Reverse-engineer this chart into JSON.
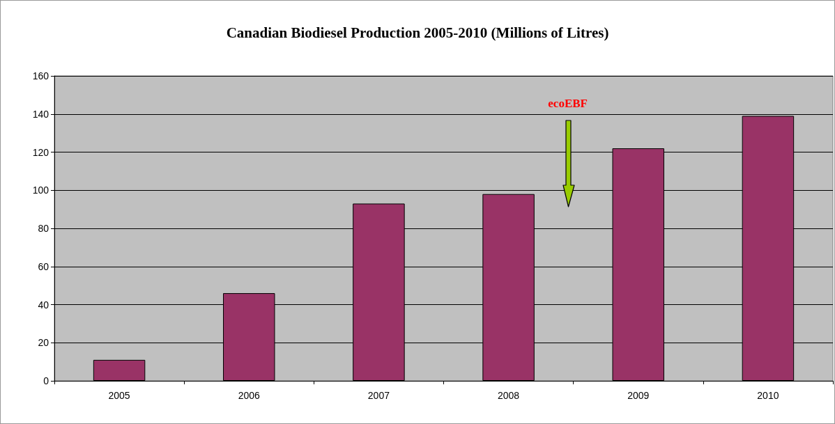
{
  "chart_data": {
    "type": "bar",
    "title": "Canadian Biodiesel Production 2005-2010 (Millions of Litres)",
    "categories": [
      "2005",
      "2006",
      "2007",
      "2008",
      "2009",
      "2010"
    ],
    "values": [
      11,
      46,
      93,
      98,
      122,
      139
    ],
    "color": "#993366",
    "ylim": [
      0,
      160
    ],
    "yticks": [
      0,
      20,
      40,
      60,
      80,
      100,
      120,
      140,
      160
    ],
    "grid": "y",
    "annotations": [
      "ecoEBF"
    ]
  }
}
